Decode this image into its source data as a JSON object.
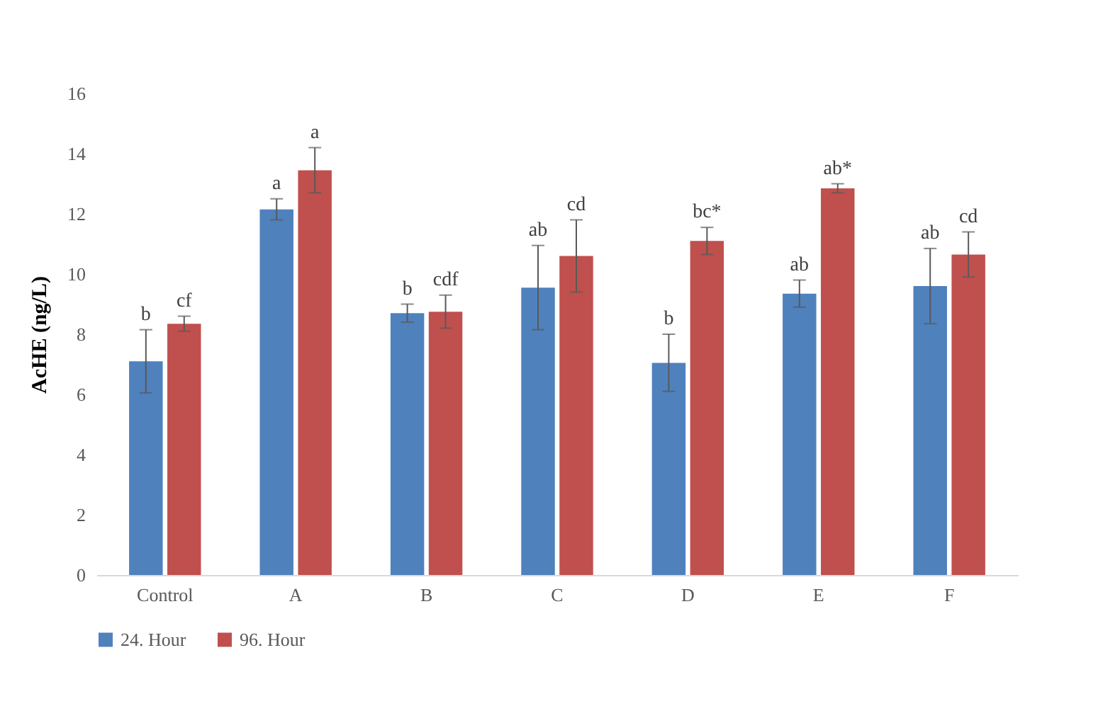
{
  "chart_data": {
    "type": "bar",
    "ylabel": "AcHE (ng/L)",
    "categories": [
      "Control",
      "A",
      "B",
      "C",
      "D",
      "E",
      "F"
    ],
    "series": [
      {
        "name": "24. Hour",
        "color": "#4f81bd",
        "values": [
          7.1,
          12.15,
          8.7,
          9.55,
          7.05,
          9.35,
          9.6
        ],
        "errors": [
          1.05,
          0.35,
          0.3,
          1.4,
          0.95,
          0.45,
          1.25
        ],
        "value_labels": [
          "b",
          "a",
          "b",
          "ab",
          "b",
          "ab",
          "ab"
        ]
      },
      {
        "name": "96. Hour",
        "color": "#c0504d",
        "values": [
          8.35,
          13.45,
          8.75,
          10.6,
          11.1,
          12.85,
          10.65
        ],
        "errors": [
          0.25,
          0.75,
          0.55,
          1.2,
          0.45,
          0.15,
          0.75
        ],
        "value_labels": [
          "cf",
          "a",
          "cdf",
          "cd",
          "bc*",
          "ab*",
          "cd"
        ]
      }
    ],
    "ylim": [
      0,
      16
    ],
    "yticks": [
      0,
      2,
      4,
      6,
      8,
      10,
      12,
      14,
      16
    ],
    "grid": false,
    "legend": "bottom"
  }
}
